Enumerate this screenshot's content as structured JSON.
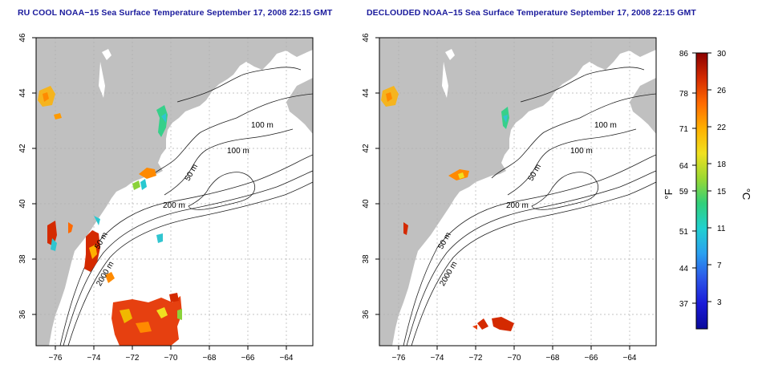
{
  "left_panel": {
    "title": "RU COOL NOAA−15 Sea Surface Temperature September 17, 2008 22:15 GMT",
    "contour_labels": [
      "100 m",
      "100 m",
      "50 m",
      "200 m",
      "50 m",
      "2000 m"
    ]
  },
  "right_panel": {
    "title": "DECLOUDED NOAA−15 Sea Surface Temperature September 17, 2008 22:15 GMT",
    "contour_labels": [
      "100 m",
      "100 m",
      "50 m",
      "200 m",
      "50 m",
      "2000 m"
    ]
  },
  "x_ticks": [
    "−76",
    "−74",
    "−72",
    "−70",
    "−68",
    "−66",
    "−64"
  ],
  "y_ticks": [
    "46",
    "44",
    "42",
    "40",
    "38",
    "36"
  ],
  "colorbar": {
    "fahrenheit_ticks": [
      "86",
      "78",
      "71",
      "64",
      "59",
      "51",
      "44",
      "37"
    ],
    "celsius_ticks": [
      "30",
      "26",
      "22",
      "18",
      "15",
      "11",
      "7",
      "3"
    ],
    "fahrenheit_unit": "°F",
    "celsius_unit": "°C",
    "gradient_colors": [
      "#8b0000",
      "#d42a00",
      "#ff6a00",
      "#ffb000",
      "#f0e020",
      "#9ad832",
      "#31d07a",
      "#20d0d0",
      "#2aa0f0",
      "#2b55e8",
      "#1a1ad8",
      "#0a0a9a"
    ]
  },
  "colors": {
    "land": "#c0c0c0",
    "water": "#ffffff",
    "title": "#1a1a9c",
    "grid": "#b0b0b0"
  }
}
